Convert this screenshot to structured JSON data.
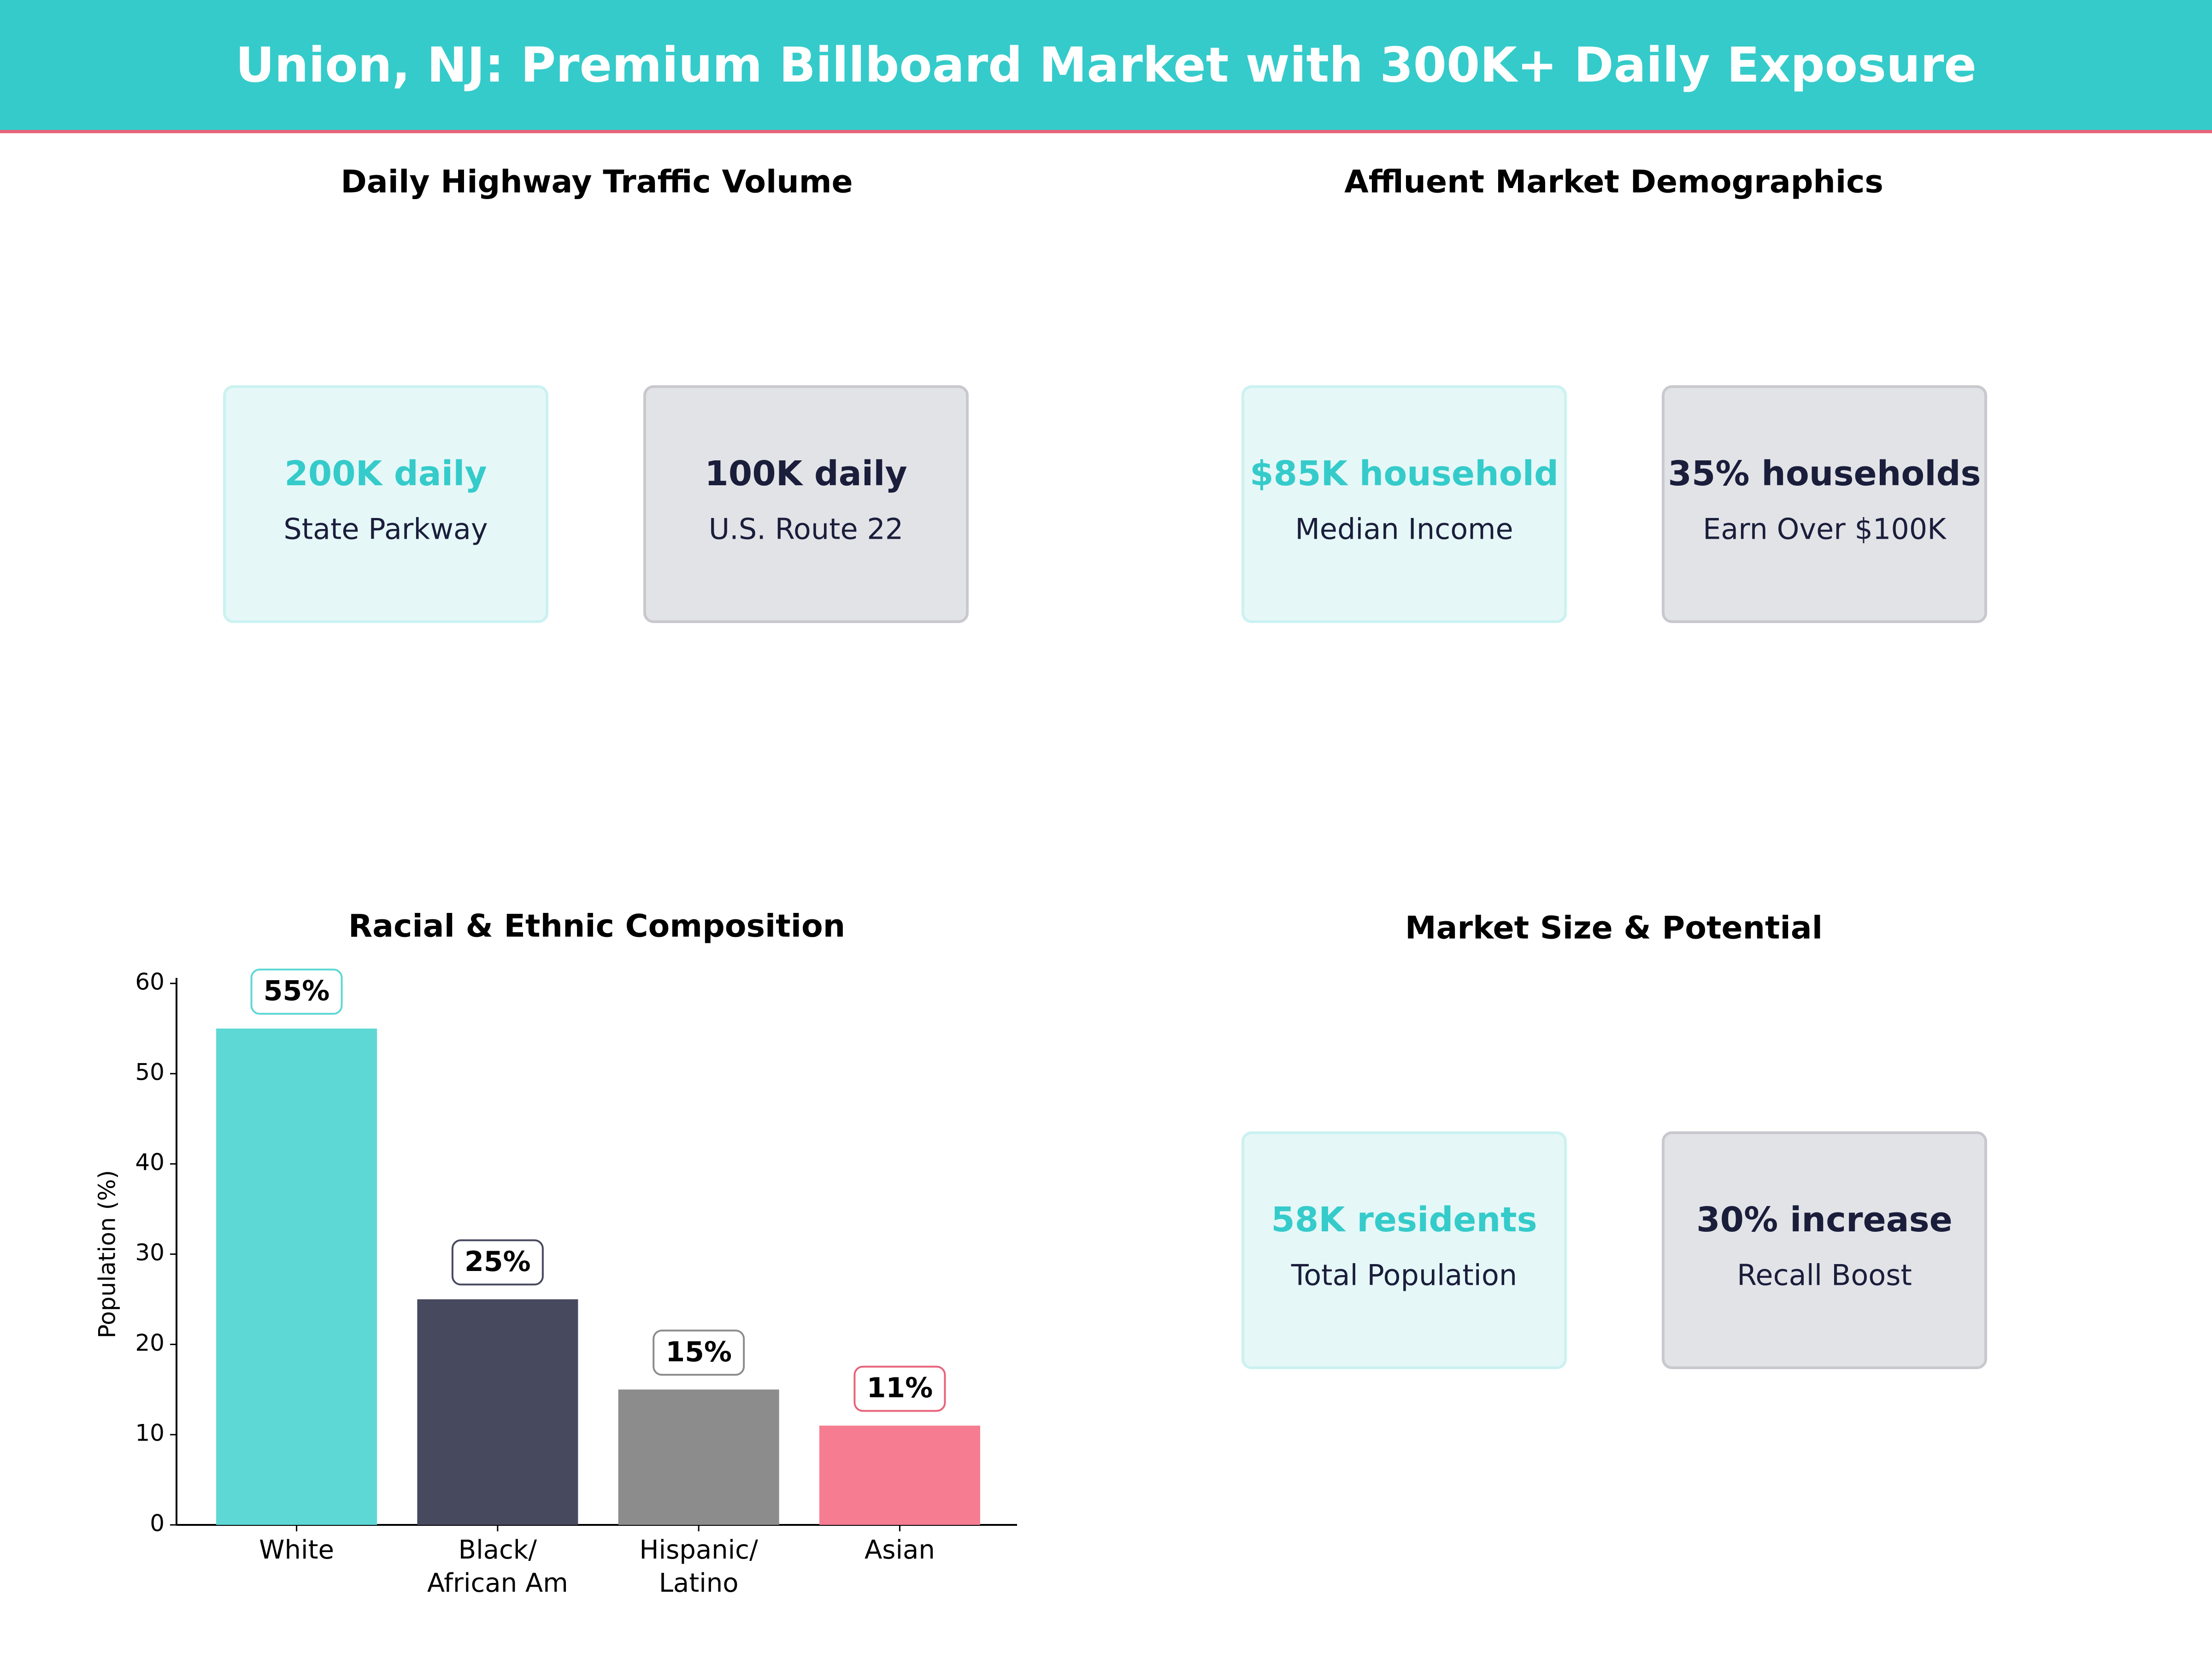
{
  "header": {
    "title": "Union, NJ: Premium Billboard Market with 300K+ Daily Exposure"
  },
  "colors": {
    "header_bg": "#36CBCB",
    "accent_line": "#E8627A",
    "teal": "#36CBCB",
    "dark": "#1B1E3A"
  },
  "traffic": {
    "title": "Daily Highway Traffic Volume",
    "cards": [
      {
        "value": "200K daily",
        "label": "State Parkway"
      },
      {
        "value": "100K daily",
        "label": "U.S. Route 22"
      }
    ]
  },
  "demographics": {
    "title": "Affluent Market Demographics",
    "cards": [
      {
        "value": "$85K household",
        "label": "Median Income"
      },
      {
        "value": "35% households",
        "label": "Earn Over $100K"
      }
    ]
  },
  "market": {
    "title": "Market Size & Potential",
    "cards": [
      {
        "value": "58K residents",
        "label": "Total Population"
      },
      {
        "value": "30% increase",
        "label": "Recall Boost"
      }
    ]
  },
  "chart_data": {
    "type": "bar",
    "title": "Racial & Ethnic Composition",
    "categories": [
      "White",
      "Black/\nAfrican Am",
      "Hispanic/\nLatino",
      "Asian"
    ],
    "values": [
      55,
      25,
      15,
      11
    ],
    "data_labels": [
      "55%",
      "25%",
      "15%",
      "11%"
    ],
    "colors": [
      "#5ED8D5",
      "#474A5F",
      "#8C8C8C",
      "#F57C91"
    ],
    "label_border_colors": [
      "#5ED8D5",
      "#474A5F",
      "#8C8C8C",
      "#E8627A"
    ],
    "xlabel": "",
    "ylabel": "Population (%)",
    "ylim": [
      0,
      60
    ],
    "yticks": [
      0,
      10,
      20,
      30,
      40,
      50,
      60
    ],
    "grid": false
  }
}
